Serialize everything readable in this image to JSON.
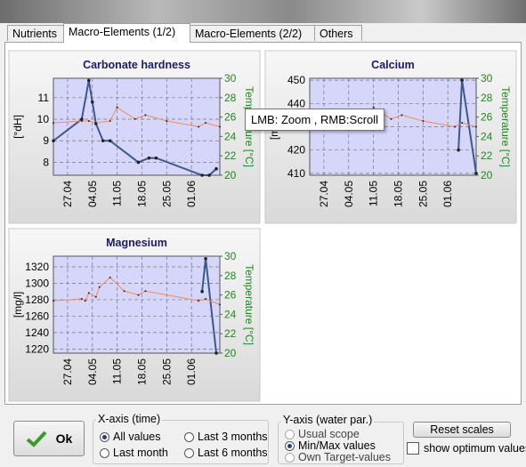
{
  "tabs": [
    "Nutrients",
    "Macro-Elements (1/2)",
    "Macro-Elements (2/2)",
    "Others"
  ],
  "tooltip": "LMB: Zoom , RMB:Scroll",
  "controls": {
    "ok": "Ok",
    "x_axis": {
      "title": "X-axis (time)",
      "options": [
        "All values",
        "Last 3 months",
        "Last month",
        "Last 6 months"
      ]
    },
    "y_axis": {
      "title": "Y-axis (water par.)",
      "options": [
        "Usual scope",
        "Min/Max values",
        "Own Target-values"
      ]
    },
    "reset": "Reset scales",
    "optimum": "show optimum values"
  },
  "chart_data": [
    {
      "type": "line",
      "title": "Carbonate hardness",
      "ylabel": "[°dH]",
      "y2label": "Temperature [°C]",
      "ylim": [
        7.4,
        11.9
      ],
      "yticks": [
        8,
        9,
        10,
        11
      ],
      "y2lim": [
        20,
        30
      ],
      "y2ticks": [
        20,
        22,
        24,
        26,
        28,
        30
      ],
      "xlim": [
        "23.04",
        "09.06"
      ],
      "xticks": [
        "27.04",
        "04.05",
        "11.05",
        "18.05",
        "25.05",
        "01.06"
      ],
      "grid": true,
      "series": [
        {
          "color": "#3a5a8c",
          "axis": "y",
          "x": [
            "23.04",
            "01.05",
            "03.05",
            "04.05",
            "05.05",
            "07.05",
            "09.05",
            "17.05",
            "20.05",
            "22.05",
            "04.06",
            "06.06",
            "08.06"
          ],
          "values": [
            9.0,
            10.0,
            11.8,
            10.8,
            9.8,
            9.0,
            9.0,
            8.0,
            8.2,
            8.2,
            7.4,
            7.4,
            7.7
          ]
        },
        {
          "color": "#f08a5a",
          "axis": "y2",
          "x": [
            "23.04",
            "01.05",
            "03.05",
            "05.05",
            "09.05",
            "11.05",
            "16.05",
            "19.05",
            "25.05",
            "03.06",
            "05.06",
            "09.06"
          ],
          "values": [
            25.4,
            25.6,
            25.6,
            25.4,
            25.6,
            27.0,
            25.8,
            26.2,
            25.6,
            25.0,
            25.4,
            25.0
          ]
        }
      ]
    },
    {
      "type": "line",
      "title": "Calcium",
      "ylabel": "[mg/l]",
      "y2label": "Temperature [°C]",
      "ylim": [
        409.2,
        450.8
      ],
      "yticks": [
        410,
        420,
        430,
        440,
        450
      ],
      "y2lim": [
        20,
        30
      ],
      "y2ticks": [
        20,
        22,
        24,
        26,
        28,
        30
      ],
      "xlim": [
        "23.04",
        "09.06"
      ],
      "xticks": [
        "27.04",
        "04.05",
        "11.05",
        "18.05",
        "25.05",
        "01.06"
      ],
      "grid": true,
      "series": [
        {
          "color": "#3a5a8c",
          "axis": "y",
          "x": [
            "04.06",
            "05.06",
            "09.06"
          ],
          "values": [
            420,
            450,
            410
          ]
        },
        {
          "color": "#f08a5a",
          "axis": "y2",
          "x": [
            "23.04",
            "01.05",
            "05.05",
            "09.05",
            "11.05",
            "16.05",
            "19.05",
            "25.05",
            "03.06",
            "05.06",
            "09.06"
          ],
          "values": [
            25.4,
            25.6,
            25.4,
            25.6,
            27.0,
            25.8,
            26.2,
            25.6,
            25.0,
            25.4,
            25.0
          ]
        }
      ]
    },
    {
      "type": "line",
      "title": "Magnesium",
      "ylabel": "[mg/l]",
      "y2label": "Temperature [°C]",
      "ylim": [
        1215,
        1333
      ],
      "yticks": [
        1220,
        1240,
        1260,
        1280,
        1300,
        1320
      ],
      "y2lim": [
        20,
        30
      ],
      "y2ticks": [
        20,
        22,
        24,
        26,
        28,
        30
      ],
      "xlim": [
        "23.04",
        "09.06"
      ],
      "xticks": [
        "27.04",
        "04.05",
        "11.05",
        "18.05",
        "25.05",
        "01.06"
      ],
      "grid": true,
      "series": [
        {
          "color": "#3a5a8c",
          "axis": "y",
          "x": [
            "04.06",
            "05.06",
            "08.06"
          ],
          "values": [
            1290,
            1330,
            1215
          ]
        },
        {
          "color": "#f08a5a",
          "axis": "y2",
          "x": [
            "23.04",
            "01.05",
            "02.05",
            "03.05",
            "05.05",
            "06.05",
            "09.05",
            "13.05",
            "17.05",
            "19.05",
            "03.06",
            "05.06",
            "09.06"
          ],
          "values": [
            25.4,
            25.6,
            25.4,
            26.2,
            25.8,
            26.8,
            27.8,
            26.4,
            26.0,
            26.4,
            25.4,
            25.6,
            25.0
          ]
        }
      ]
    }
  ]
}
